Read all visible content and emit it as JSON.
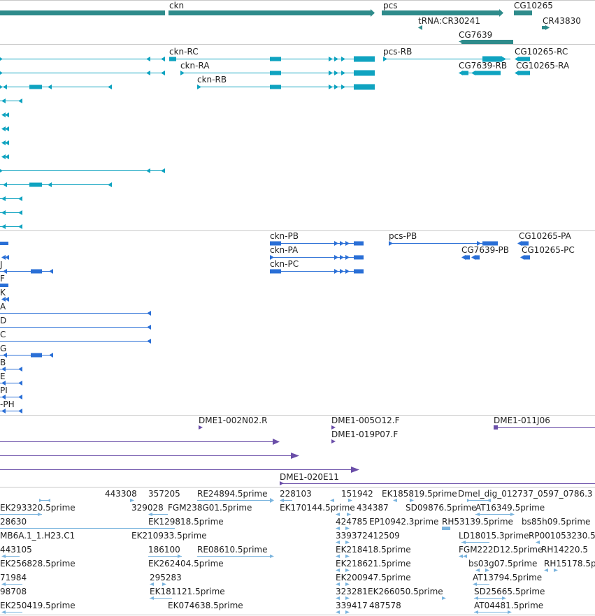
{
  "colors": {
    "gene": "#2e8b8b",
    "transcript": "#0fa3c0",
    "cds": "#2a6fd6",
    "clone": "#6a4ea8",
    "est": "#7ab4de",
    "separator": "#c8c8c8"
  },
  "genes": [
    {
      "name": "ckn"
    },
    {
      "name": "pcs"
    },
    {
      "name": "CG10265"
    },
    {
      "name": "tRNA:CR30241"
    },
    {
      "name": "CR43830"
    },
    {
      "name": "CG7639"
    }
  ],
  "transcripts": [
    {
      "name": "ckn-RC"
    },
    {
      "name": "ckn-RA"
    },
    {
      "name": "ckn-RB"
    },
    {
      "name": "pcs-RB"
    },
    {
      "name": "CG7639-RB"
    },
    {
      "name": "CG10265-RC"
    },
    {
      "name": "CG10265-RA"
    }
  ],
  "proteins": [
    {
      "name": "ckn-PB"
    },
    {
      "name": "ckn-PA"
    },
    {
      "name": "ckn-PC"
    },
    {
      "name": "pcs-PB"
    },
    {
      "name": "CG7639-PB"
    },
    {
      "name": "CG10265-PA"
    },
    {
      "name": "CG10265-PC"
    }
  ],
  "protein_edge_labels": [
    "J",
    "F",
    "K",
    "A",
    "D",
    "C",
    "G",
    "B",
    "E",
    "PI",
    "-PH"
  ],
  "clones": [
    {
      "name": "DME1-002N02.R"
    },
    {
      "name": "DME1-005O12.F"
    },
    {
      "name": "DME1-019P07.F"
    },
    {
      "name": "DME1-011J06"
    },
    {
      "name": "DME1-020E11"
    }
  ],
  "ests": [
    {
      "name": "443308"
    },
    {
      "name": "357205"
    },
    {
      "name": "RE24894.5prime"
    },
    {
      "name": "228103"
    },
    {
      "name": "151942"
    },
    {
      "name": "EK185819.5prime"
    },
    {
      "name": "Dmel_dig_012737_0597_0786.3"
    },
    {
      "name": "EK293320.5prime"
    },
    {
      "name": "329028"
    },
    {
      "name": "FGM238G01.5prime"
    },
    {
      "name": "EK170144.5prime"
    },
    {
      "name": "434387"
    },
    {
      "name": "SD09876.5prime"
    },
    {
      "name": "AT16349.5prime"
    },
    {
      "name": "28630"
    },
    {
      "name": "EK129818.5prime"
    },
    {
      "name": "424785"
    },
    {
      "name": "EP10942.3prime"
    },
    {
      "name": "RH53139.5prime"
    },
    {
      "name": "bs85h09.5prime"
    },
    {
      "name": "MB6A.1_1.H23.C1"
    },
    {
      "name": "EK210933.5prime"
    },
    {
      "name": "339372"
    },
    {
      "name": "412509"
    },
    {
      "name": "LD18015.3prime"
    },
    {
      "name": "RP001053230.5"
    },
    {
      "name": "443105"
    },
    {
      "name": "186100"
    },
    {
      "name": "RE08610.5prime"
    },
    {
      "name": "EK218418.5prime"
    },
    {
      "name": "FGM222D12.5prime"
    },
    {
      "name": "RH14220.5"
    },
    {
      "name": "EK256828.5prime"
    },
    {
      "name": "EK262404.5prime"
    },
    {
      "name": "EK218621.5prime"
    },
    {
      "name": "bs03g07.5prime"
    },
    {
      "name": "RH15178.5p"
    },
    {
      "name": "71984"
    },
    {
      "name": "295283"
    },
    {
      "name": "EK200947.5prime"
    },
    {
      "name": "AT13794.5prime"
    },
    {
      "name": "98708"
    },
    {
      "name": "EK181121.5prime"
    },
    {
      "name": "323281"
    },
    {
      "name": "EK266050.5prime"
    },
    {
      "name": "SD25665.5prime"
    },
    {
      "name": "EK250419.5prime"
    },
    {
      "name": "EK074638.5prime"
    },
    {
      "name": "339417"
    },
    {
      "name": "487578"
    },
    {
      "name": "AT04481.5prime"
    }
  ]
}
